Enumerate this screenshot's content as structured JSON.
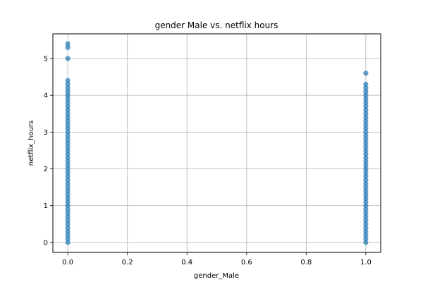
{
  "chart_data": {
    "type": "scatter",
    "title": "gender Male vs. netflix hours",
    "xlabel": "gender_Male",
    "ylabel": "netflix_hours",
    "xlim": [
      -0.05,
      1.05
    ],
    "ylim": [
      -0.27,
      5.67
    ],
    "xticks": [
      0.0,
      0.2,
      0.4,
      0.6,
      0.8,
      1.0
    ],
    "xtick_labels": [
      "0.0",
      "0.2",
      "0.4",
      "0.6",
      "0.8",
      "1.0"
    ],
    "yticks": [
      0,
      1,
      2,
      3,
      4,
      5
    ],
    "ytick_labels": [
      "0",
      "1",
      "2",
      "3",
      "4",
      "5"
    ],
    "grid": true,
    "point_color": "#1f77b4",
    "series": [
      {
        "x_value": 0,
        "y": [
          0.0,
          0.1,
          0.2,
          0.3,
          0.4,
          0.5,
          0.6,
          0.7,
          0.8,
          0.9,
          1.0,
          1.1,
          1.2,
          1.3,
          1.4,
          1.5,
          1.6,
          1.7,
          1.8,
          1.9,
          2.0,
          2.1,
          2.2,
          2.3,
          2.4,
          2.5,
          2.6,
          2.7,
          2.8,
          2.9,
          3.0,
          3.1,
          3.2,
          3.3,
          3.4,
          3.5,
          3.6,
          3.7,
          3.8,
          3.9,
          4.0,
          4.1,
          4.2,
          4.3,
          4.4,
          5.0,
          5.3,
          5.4
        ]
      },
      {
        "x_value": 1,
        "y": [
          0.0,
          0.1,
          0.2,
          0.3,
          0.4,
          0.5,
          0.6,
          0.7,
          0.8,
          0.9,
          1.0,
          1.1,
          1.2,
          1.3,
          1.4,
          1.5,
          1.6,
          1.7,
          1.8,
          1.9,
          2.0,
          2.1,
          2.2,
          2.3,
          2.4,
          2.5,
          2.6,
          2.7,
          2.8,
          2.9,
          3.0,
          3.1,
          3.2,
          3.3,
          3.4,
          3.5,
          3.6,
          3.7,
          3.8,
          3.9,
          4.0,
          4.1,
          4.2,
          4.3,
          4.6
        ]
      }
    ]
  }
}
